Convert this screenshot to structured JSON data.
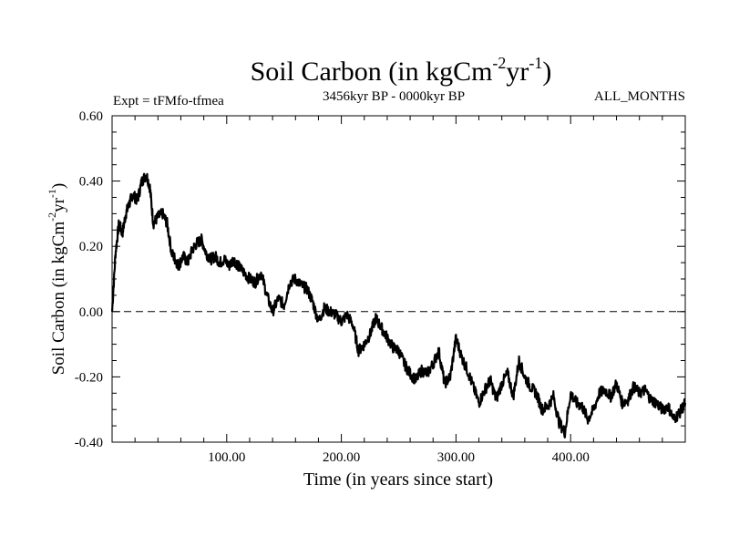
{
  "chart_data": {
    "type": "line",
    "title_main": "Soil Carbon (in kgCm",
    "title_sup1": "-2",
    "title_mid": "yr",
    "title_sup2": "-1",
    "title_end": ")",
    "subtitle_left": "Expt = tFMfo-tfmea",
    "subtitle_center": "3456kyr BP - 0000kyr BP",
    "subtitle_right": "ALL_MONTHS",
    "xlabel": "Time (in years since start)",
    "ylabel_main": "Soil Carbon (in kgCm",
    "ylabel_sup1": "-2",
    "ylabel_mid": "yr",
    "ylabel_sup2": "-1",
    "ylabel_end": ")",
    "xlim": [
      0,
      500
    ],
    "ylim": [
      -0.4,
      0.6
    ],
    "x_ticks": [
      100,
      200,
      300,
      400
    ],
    "x_tick_labels": [
      "100.00",
      "200.00",
      "300.00",
      "400.00"
    ],
    "y_ticks": [
      -0.4,
      -0.2,
      0.0,
      0.2,
      0.4,
      0.6
    ],
    "y_tick_labels": [
      "-0.40",
      "-0.20",
      "0.00",
      "0.20",
      "0.40",
      "0.60"
    ],
    "reference_line": 0.0,
    "series": [
      {
        "name": "Soil Carbon",
        "x": [
          0,
          3,
          6,
          9,
          12,
          15,
          18,
          22,
          26,
          30,
          33,
          36,
          40,
          44,
          48,
          52,
          55,
          58,
          62,
          66,
          70,
          74,
          78,
          82,
          86,
          90,
          94,
          98,
          102,
          106,
          110,
          115,
          120,
          125,
          130,
          135,
          140,
          145,
          150,
          155,
          160,
          165,
          170,
          175,
          180,
          185,
          190,
          195,
          200,
          205,
          210,
          215,
          220,
          225,
          230,
          235,
          240,
          245,
          250,
          255,
          260,
          265,
          270,
          275,
          280,
          285,
          290,
          295,
          300,
          305,
          310,
          315,
          320,
          325,
          330,
          335,
          340,
          345,
          350,
          355,
          360,
          365,
          370,
          375,
          380,
          385,
          390,
          395,
          400,
          405,
          410,
          415,
          420,
          425,
          430,
          435,
          440,
          445,
          450,
          455,
          460,
          465,
          470,
          475,
          480,
          485,
          490,
          495,
          500
        ],
        "values": [
          0.0,
          0.18,
          0.27,
          0.24,
          0.3,
          0.33,
          0.36,
          0.34,
          0.4,
          0.42,
          0.38,
          0.27,
          0.29,
          0.3,
          0.27,
          0.18,
          0.16,
          0.14,
          0.17,
          0.15,
          0.19,
          0.21,
          0.22,
          0.18,
          0.16,
          0.17,
          0.15,
          0.16,
          0.14,
          0.16,
          0.14,
          0.12,
          0.1,
          0.09,
          0.12,
          0.05,
          0.0,
          0.04,
          0.02,
          0.09,
          0.1,
          0.08,
          0.07,
          0.03,
          -0.03,
          0.01,
          0.0,
          -0.01,
          -0.03,
          -0.01,
          -0.04,
          -0.12,
          -0.1,
          -0.07,
          -0.02,
          -0.05,
          -0.08,
          -0.11,
          -0.12,
          -0.16,
          -0.19,
          -0.21,
          -0.18,
          -0.19,
          -0.16,
          -0.12,
          -0.22,
          -0.2,
          -0.08,
          -0.14,
          -0.18,
          -0.23,
          -0.28,
          -0.24,
          -0.21,
          -0.27,
          -0.22,
          -0.19,
          -0.26,
          -0.15,
          -0.2,
          -0.23,
          -0.25,
          -0.3,
          -0.29,
          -0.26,
          -0.34,
          -0.37,
          -0.25,
          -0.28,
          -0.29,
          -0.33,
          -0.3,
          -0.25,
          -0.24,
          -0.26,
          -0.22,
          -0.28,
          -0.27,
          -0.23,
          -0.25,
          -0.24,
          -0.27,
          -0.28,
          -0.3,
          -0.29,
          -0.33,
          -0.31,
          -0.28
        ]
      }
    ]
  }
}
